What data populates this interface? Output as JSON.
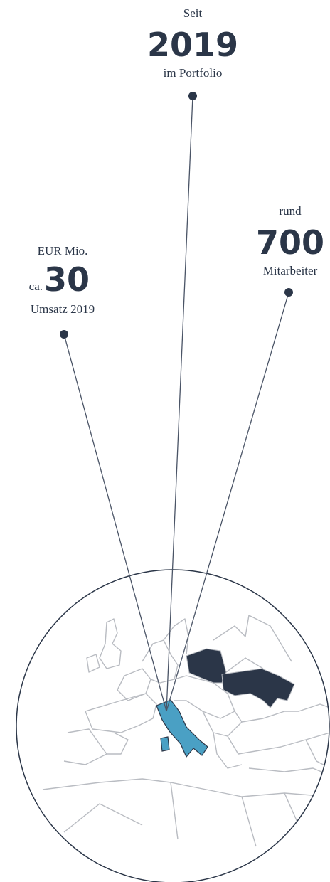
{
  "stats": [
    {
      "top": "Seit",
      "value": 2019,
      "bottom": "im Portfolio"
    },
    {
      "top": "rund",
      "value": 700,
      "bottom": "Mitarbeiter"
    },
    {
      "top": "EUR Mio.",
      "prefix": "ca.",
      "value": 30,
      "bottom": "Umsatz 2019"
    }
  ]
}
